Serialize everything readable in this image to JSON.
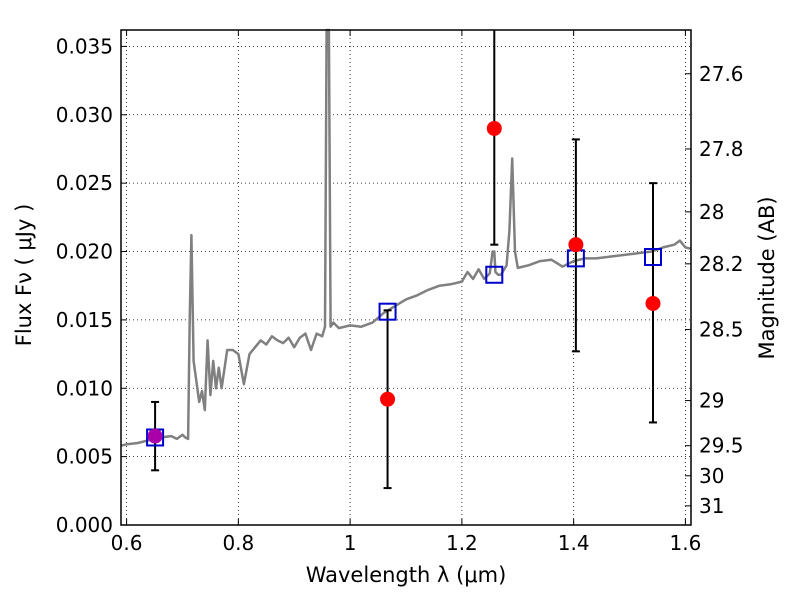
{
  "chart_data": {
    "type": "scatter",
    "title": "",
    "xlabel": "Wavelength  λ (μm)",
    "ylabel": "Flux  Fν  ( μJy )",
    "y2label": "Magnitude (AB)",
    "xlim": [
      0.59,
      1.61
    ],
    "ylim": [
      0.0,
      0.0362
    ],
    "grid": true,
    "x_ticks": [
      0.6,
      0.8,
      1.0,
      1.2,
      1.4,
      1.6
    ],
    "x_tick_labels": [
      "0.6",
      "0.8",
      "1",
      "1.2",
      "1.4",
      "1.6"
    ],
    "y_ticks": [
      0.0,
      0.005,
      0.01,
      0.015,
      0.02,
      0.025,
      0.03,
      0.035
    ],
    "y_tick_labels": [
      "0.000",
      "0.005",
      "0.010",
      "0.015",
      "0.020",
      "0.025",
      "0.030",
      "0.035"
    ],
    "y2_ticks": [
      {
        "label": "27.6",
        "flux": 0.033
      },
      {
        "label": "27.8",
        "flux": 0.0275
      },
      {
        "label": "28",
        "flux": 0.0229
      },
      {
        "label": "28.2",
        "flux": 0.0191
      },
      {
        "label": "28.5",
        "flux": 0.0143
      },
      {
        "label": "29",
        "flux": 0.0091
      },
      {
        "label": "29.5",
        "flux": 0.0058
      },
      {
        "label": "30",
        "flux": 0.0036
      },
      {
        "label": "31",
        "flux": 0.0014
      }
    ],
    "model_spectrum": {
      "color": "#808080",
      "x": [
        0.59,
        0.6,
        0.62,
        0.64,
        0.66,
        0.68,
        0.69,
        0.7,
        0.705,
        0.71,
        0.713,
        0.716,
        0.72,
        0.73,
        0.735,
        0.74,
        0.745,
        0.75,
        0.755,
        0.76,
        0.765,
        0.77,
        0.78,
        0.79,
        0.8,
        0.81,
        0.82,
        0.83,
        0.84,
        0.85,
        0.86,
        0.87,
        0.88,
        0.89,
        0.9,
        0.91,
        0.92,
        0.93,
        0.94,
        0.95,
        0.955,
        0.958,
        0.96,
        0.962,
        0.965,
        0.97,
        0.98,
        1.0,
        1.02,
        1.04,
        1.06,
        1.08,
        1.1,
        1.12,
        1.14,
        1.16,
        1.18,
        1.2,
        1.21,
        1.22,
        1.23,
        1.24,
        1.25,
        1.255,
        1.258,
        1.26,
        1.265,
        1.27,
        1.28,
        1.285,
        1.29,
        1.295,
        1.3,
        1.32,
        1.34,
        1.36,
        1.38,
        1.4,
        1.42,
        1.44,
        1.46,
        1.48,
        1.5,
        1.52,
        1.54,
        1.56,
        1.58,
        1.59,
        1.6,
        1.61
      ],
      "y": [
        0.0058,
        0.0059,
        0.006,
        0.0062,
        0.0064,
        0.0065,
        0.0063,
        0.0066,
        0.0064,
        0.0063,
        0.015,
        0.0212,
        0.012,
        0.009,
        0.0098,
        0.0084,
        0.0135,
        0.0095,
        0.012,
        0.01,
        0.0115,
        0.01,
        0.0128,
        0.0128,
        0.0125,
        0.0103,
        0.0125,
        0.013,
        0.0135,
        0.0132,
        0.0138,
        0.0135,
        0.0133,
        0.0137,
        0.013,
        0.0137,
        0.014,
        0.0128,
        0.014,
        0.0138,
        0.0145,
        0.0362,
        0.0362,
        0.0362,
        0.0145,
        0.0148,
        0.0144,
        0.0146,
        0.0145,
        0.0148,
        0.0155,
        0.016,
        0.0165,
        0.0168,
        0.0172,
        0.0175,
        0.0176,
        0.0178,
        0.0185,
        0.018,
        0.0187,
        0.018,
        0.0184,
        0.02,
        0.02,
        0.0185,
        0.0183,
        0.0183,
        0.019,
        0.0215,
        0.0268,
        0.02,
        0.0188,
        0.019,
        0.0193,
        0.0194,
        0.0189,
        0.0193,
        0.0195,
        0.0195,
        0.0196,
        0.0197,
        0.0198,
        0.0199,
        0.02,
        0.0203,
        0.0205,
        0.0208,
        0.0203,
        0.0202
      ]
    },
    "model_photometry": {
      "marker": "square",
      "color": "#0000cc",
      "x": [
        0.651,
        1.067,
        1.258,
        1.404,
        1.542
      ],
      "y": [
        0.0064,
        0.0156,
        0.0183,
        0.0195,
        0.0196
      ]
    },
    "observed_photometry": {
      "marker": "circle",
      "color": "#ff0000",
      "x": [
        0.651,
        1.067,
        1.258,
        1.404,
        1.542
      ],
      "y": [
        0.0065,
        0.0092,
        0.029,
        0.0205,
        0.0162
      ],
      "err_low": [
        0.004,
        0.0027,
        0.0205,
        0.0127,
        0.0075
      ],
      "err_high": [
        0.009,
        0.0157,
        0.0362,
        0.0282,
        0.025
      ]
    },
    "overlap_color": "#aa00aa"
  }
}
